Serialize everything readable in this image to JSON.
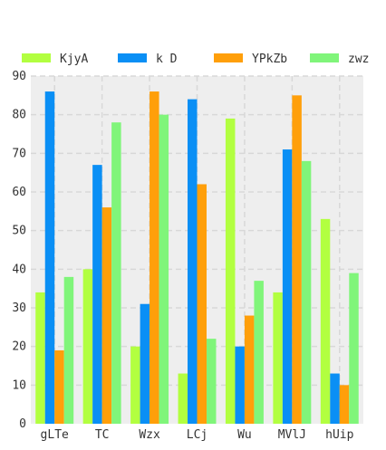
{
  "chart_data": {
    "type": "bar",
    "categories": [
      "gLTe",
      "TC",
      "Wzx",
      "LCj",
      "Wu",
      "MVlJ",
      "hUip"
    ],
    "series": [
      {
        "name": "KjyA",
        "color": "#b2ff40",
        "values": [
          34,
          40,
          20,
          13,
          79,
          34,
          53
        ]
      },
      {
        "name": "k D",
        "color": "#0a8ff5",
        "values": [
          86,
          67,
          31,
          84,
          20,
          71,
          13
        ]
      },
      {
        "name": "YPkZb",
        "color": "#ff9f0a",
        "values": [
          19,
          56,
          86,
          62,
          28,
          85,
          10
        ]
      },
      {
        "name": "zwz",
        "color": "#80f57a",
        "values": [
          38,
          78,
          80,
          22,
          37,
          68,
          39
        ]
      }
    ],
    "title": "",
    "xlabel": "",
    "ylabel": "",
    "ylim": [
      0,
      90
    ],
    "yticks": [
      0,
      10,
      20,
      30,
      40,
      50,
      60,
      70,
      80,
      90
    ],
    "grid": true,
    "legend_position": "top"
  }
}
